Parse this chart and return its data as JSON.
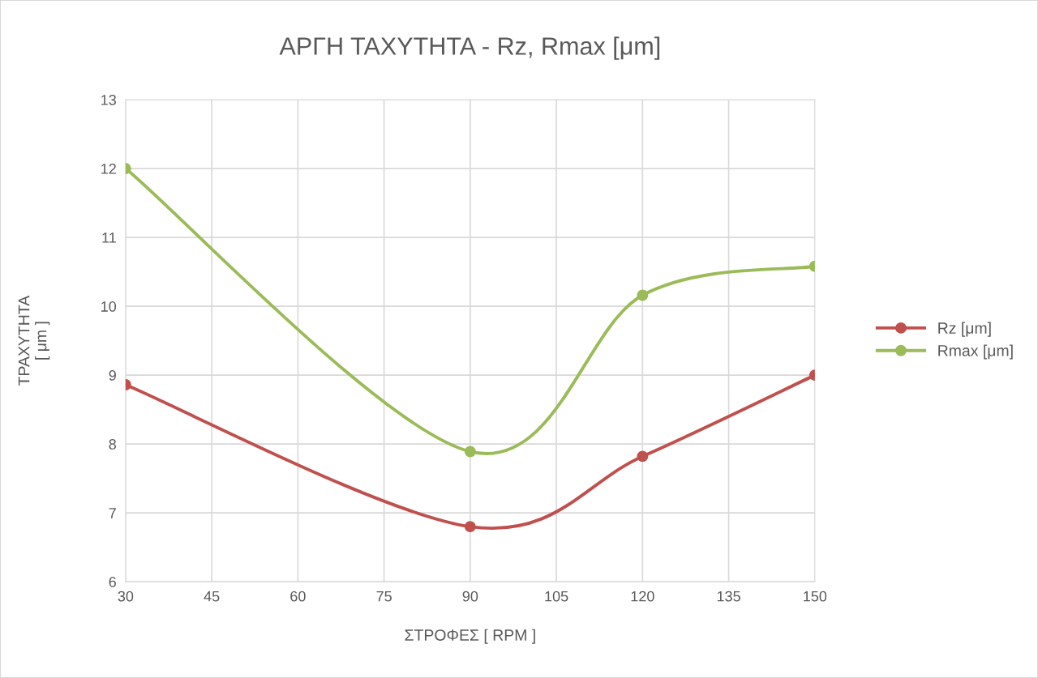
{
  "chart_data": {
    "type": "line",
    "title": "ΑΡΓΗ ΤΑΧΥΤΗΤΑ - Rz, Rmax [μm]",
    "xlabel": "ΣΤΡΟΦΕΣ [ RPM ]",
    "ylabel": "ΤΡΑΧΥΤΗΤΑ\n[ μm ]",
    "x": [
      30,
      90,
      120,
      150
    ],
    "series": [
      {
        "name": "Rz [μm]",
        "color": "#c0504d",
        "values": [
          8.86,
          6.8,
          7.82,
          9.0
        ]
      },
      {
        "name": "Rmax [μm]",
        "color": "#9bbb59",
        "values": [
          12.0,
          7.89,
          10.16,
          10.58
        ]
      }
    ],
    "xlim": [
      30,
      150
    ],
    "xticks": [
      30,
      45,
      60,
      75,
      90,
      105,
      120,
      135,
      150
    ],
    "ylim": [
      6,
      13
    ],
    "yticks": [
      6,
      7,
      8,
      9,
      10,
      11,
      12,
      13
    ],
    "grid": true,
    "legend": "right",
    "marker": "circle",
    "line_style": "solid"
  }
}
